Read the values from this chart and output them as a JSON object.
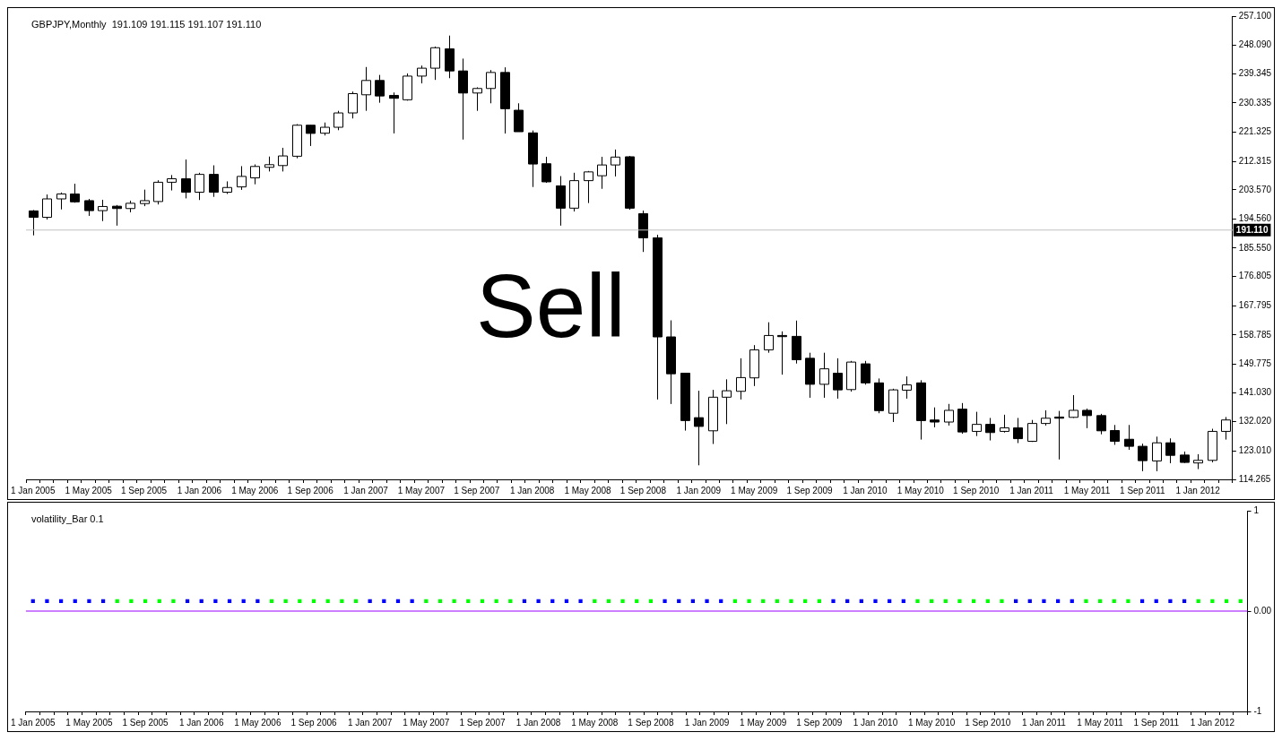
{
  "chart_data": [
    {
      "type": "candlestick",
      "title": "GBPJPY,Monthly  191.109 191.115 191.107 191.110",
      "categories": [
        "1 Jan 2005",
        null,
        null,
        null,
        "1 May 2005",
        null,
        null,
        null,
        "1 Sep 2005",
        null,
        null,
        null,
        "1 Jan 2006",
        null,
        null,
        null,
        "1 May 2006",
        null,
        null,
        null,
        "1 Sep 2006",
        null,
        null,
        null,
        "1 Jan 2007",
        null,
        null,
        null,
        "1 May 2007",
        null,
        null,
        null,
        "1 Sep 2007",
        null,
        null,
        null,
        "1 Jan 2008",
        null,
        null,
        null,
        "1 May 2008",
        null,
        null,
        null,
        "1 Sep 2008",
        null,
        null,
        null,
        "1 Jan 2009",
        null,
        null,
        null,
        "1 May 2009",
        null,
        null,
        null,
        "1 Sep 2009",
        null,
        null,
        null,
        "1 Jan 2010",
        null,
        null,
        null,
        "1 May 2010",
        null,
        null,
        null,
        "1 Sep 2010",
        null,
        null,
        null,
        "1 Jan 2011",
        null,
        null,
        null,
        "1 May 2011",
        null,
        null,
        null,
        "1 Sep 2011",
        null,
        null,
        null,
        "1 Jan 2012",
        null,
        null
      ],
      "ohlc": [
        [
          197.05,
          197.3,
          189.5,
          195.06
        ],
        [
          195.06,
          202.1,
          194.4,
          200.74
        ],
        [
          200.74,
          202.72,
          197.5,
          202.27
        ],
        [
          202.27,
          205.43,
          199.57,
          199.84
        ],
        [
          200.2,
          200.74,
          195.51,
          197.13
        ],
        [
          197.13,
          200.47,
          193.9,
          198.4
        ],
        [
          198.49,
          198.85,
          192.5,
          197.77
        ],
        [
          197.77,
          200.2,
          196.6,
          199.39
        ],
        [
          199.3,
          203.6,
          198.5,
          200.2
        ],
        [
          199.93,
          206.5,
          199.03,
          205.88
        ],
        [
          205.88,
          208.1,
          203.35,
          206.96
        ],
        [
          206.96,
          212.9,
          200.9,
          202.81
        ],
        [
          202.81,
          208.8,
          200.4,
          208.3
        ],
        [
          208.3,
          211.1,
          201.37,
          202.81
        ],
        [
          202.81,
          206.15,
          202.27,
          204.26
        ],
        [
          204.44,
          210.84,
          203.53,
          207.68
        ],
        [
          207.23,
          211.38,
          205.25,
          210.75
        ],
        [
          210.48,
          213.8,
          209.2,
          211.29
        ],
        [
          211.02,
          216.5,
          209.2,
          213.99
        ],
        [
          213.9,
          223.8,
          213.27,
          223.46
        ],
        [
          223.46,
          223.46,
          217.06,
          220.94
        ],
        [
          221.0,
          224.3,
          220.3,
          222.83
        ],
        [
          222.83,
          227.9,
          221.93,
          227.25
        ],
        [
          227.25,
          233.83,
          225.54,
          233.2
        ],
        [
          232.84,
          241.41,
          227.9,
          237.26
        ],
        [
          237.26,
          238.97,
          230.4,
          232.48
        ],
        [
          232.66,
          233.56,
          220.94,
          231.76
        ],
        [
          231.31,
          239.42,
          231.04,
          238.61
        ],
        [
          238.61,
          241.86,
          236.36,
          241.05
        ],
        [
          241.05,
          247.72,
          237.44,
          247.36
        ],
        [
          247.0,
          251.1,
          237.96,
          240.2
        ],
        [
          240.2,
          244.0,
          219.04,
          233.39
        ],
        [
          233.39,
          235.16,
          227.9,
          234.79
        ],
        [
          234.79,
          240.47,
          230.22,
          239.73
        ],
        [
          239.73,
          241.31,
          220.9,
          228.55
        ],
        [
          228.08,
          230.22,
          221.46,
          221.46
        ],
        [
          221.1,
          221.84,
          204.41,
          211.5
        ],
        [
          211.59,
          213.73,
          205.7,
          206.0
        ],
        [
          204.78,
          207.77,
          192.5,
          197.89
        ],
        [
          197.89,
          208.8,
          196.86,
          206.37
        ],
        [
          206.37,
          209.35,
          199.47,
          209.07
        ],
        [
          207.88,
          213.73,
          203.85,
          211.21
        ],
        [
          211.21,
          215.97,
          207.67,
          213.64
        ],
        [
          213.73,
          214.0,
          197.4,
          197.89
        ],
        [
          196.2,
          197.14,
          184.38,
          188.75
        ],
        [
          188.75,
          189.7,
          138.9,
          158.19
        ],
        [
          158.19,
          163.3,
          137.5,
          146.82
        ],
        [
          147.0,
          147.0,
          129.3,
          132.4
        ],
        [
          133.29,
          141.59,
          118.6,
          130.59
        ],
        [
          129.24,
          141.86,
          125.18,
          139.6
        ],
        [
          139.6,
          145.11,
          131.31,
          141.59
        ],
        [
          141.41,
          151.6,
          138.9,
          145.65
        ],
        [
          145.56,
          155.66,
          143.04,
          154.2
        ],
        [
          154.2,
          162.7,
          153.31,
          158.63
        ],
        [
          158.63,
          159.9,
          146.55,
          158.27
        ],
        [
          158.36,
          163.23,
          149.98,
          151.15
        ],
        [
          151.6,
          153.31,
          139.43,
          143.58
        ],
        [
          143.58,
          153.31,
          139.43,
          148.35
        ],
        [
          147.0,
          151.6,
          139.16,
          141.86
        ],
        [
          141.95,
          150.79,
          141.32,
          150.43
        ],
        [
          149.89,
          150.79,
          143.48,
          144.02
        ],
        [
          144.02,
          145.38,
          134.65,
          135.46
        ],
        [
          134.65,
          142.22,
          131.94,
          141.86
        ],
        [
          141.77,
          146.01,
          139.16,
          143.39
        ],
        [
          144.02,
          144.84,
          126.53,
          132.39
        ],
        [
          132.57,
          136.45,
          130.32,
          131.94
        ],
        [
          131.94,
          137.53,
          130.86,
          135.55
        ],
        [
          135.91,
          137.8,
          128.34,
          128.88
        ],
        [
          129.06,
          135.1,
          127.62,
          131.22
        ],
        [
          131.22,
          133.2,
          126.27,
          128.7
        ],
        [
          129.06,
          134.2,
          128.7,
          130.14
        ],
        [
          130.14,
          133.2,
          125.45,
          126.81
        ],
        [
          126.0,
          132.58,
          125.81,
          131.5
        ],
        [
          131.5,
          135.55,
          130.86,
          133.12
        ],
        [
          133.48,
          135.37,
          120.4,
          133.12
        ],
        [
          133.39,
          140.24,
          133.21,
          135.55
        ],
        [
          135.55,
          136.09,
          130.05,
          133.93
        ],
        [
          133.93,
          134.47,
          128.16,
          129.24
        ],
        [
          129.33,
          131.04,
          124.91,
          126.0
        ],
        [
          126.63,
          131.04,
          123.38,
          124.46
        ],
        [
          124.46,
          125.27,
          116.79,
          120.04
        ],
        [
          119.95,
          127.44,
          116.79,
          125.54
        ],
        [
          125.54,
          126.9,
          119.23,
          121.67
        ],
        [
          121.76,
          122.84,
          119.32,
          119.5
        ],
        [
          119.32,
          122.03,
          117.43,
          120.13
        ],
        [
          120.13,
          129.87,
          119.5,
          129.06
        ],
        [
          129.06,
          133.48,
          126.53,
          132.58
        ]
      ],
      "ylim": [
        114.265,
        257.1
      ],
      "yticks": [
        {
          "value": 257.1,
          "label": "257.100"
        },
        {
          "value": 248.09,
          "label": "248.090"
        },
        {
          "value": 239.345,
          "label": "239.345"
        },
        {
          "value": 230.335,
          "label": "230.335"
        },
        {
          "value": 221.325,
          "label": "221.325"
        },
        {
          "value": 212.315,
          "label": "212.315"
        },
        {
          "value": 203.57,
          "label": "203.570"
        },
        {
          "value": 194.56,
          "label": "194.560"
        },
        {
          "value": 185.55,
          "label": "185.550"
        },
        {
          "value": 176.805,
          "label": "176.805"
        },
        {
          "value": 167.795,
          "label": "167.795"
        },
        {
          "value": 158.785,
          "label": "158.785"
        },
        {
          "value": 149.775,
          "label": "149.775"
        },
        {
          "value": 141.03,
          "label": "141.030"
        },
        {
          "value": 132.02,
          "label": "132.020"
        },
        {
          "value": 123.01,
          "label": "123.010"
        },
        {
          "value": 114.265,
          "label": "114.265"
        }
      ],
      "ref_lines": [
        {
          "axis": "y",
          "value": 191.11,
          "label": "191.110",
          "color": "#c0c0c0"
        }
      ],
      "annotations": [
        "Sell"
      ]
    },
    {
      "type": "scatter",
      "title": "volatility_Bar 0.1",
      "marker": "square",
      "categories": [
        "1 Jan 2005",
        null,
        null,
        null,
        "1 May 2005",
        null,
        null,
        null,
        "1 Sep 2005",
        null,
        null,
        null,
        "1 Jan 2006",
        null,
        null,
        null,
        "1 May 2006",
        null,
        null,
        null,
        "1 Sep 2006",
        null,
        null,
        null,
        "1 Jan 2007",
        null,
        null,
        null,
        "1 May 2007",
        null,
        null,
        null,
        "1 Sep 2007",
        null,
        null,
        null,
        "1 Jan 2008",
        null,
        null,
        null,
        "1 May 2008",
        null,
        null,
        null,
        "1 Sep 2008",
        null,
        null,
        null,
        "1 Jan 2009",
        null,
        null,
        null,
        "1 May 2009",
        null,
        null,
        null,
        "1 Sep 2009",
        null,
        null,
        null,
        "1 Jan 2010",
        null,
        null,
        null,
        "1 May 2010",
        null,
        null,
        null,
        "1 Sep 2010",
        null,
        null,
        null,
        "1 Jan 2011",
        null,
        null,
        null,
        "1 May 2011",
        null,
        null,
        null,
        "1 Sep 2011",
        null,
        null,
        null,
        "1 Jan 2012",
        null,
        null
      ],
      "values": [
        0.1,
        0.1,
        0.1,
        0.1,
        0.1,
        0.1,
        0.1,
        0.1,
        0.1,
        0.1,
        0.1,
        0.1,
        0.1,
        0.1,
        0.1,
        0.1,
        0.1,
        0.1,
        0.1,
        0.1,
        0.1,
        0.1,
        0.1,
        0.1,
        0.1,
        0.1,
        0.1,
        0.1,
        0.1,
        0.1,
        0.1,
        0.1,
        0.1,
        0.1,
        0.1,
        0.1,
        0.1,
        0.1,
        0.1,
        0.1,
        0.1,
        0.1,
        0.1,
        0.1,
        0.1,
        0.1,
        0.1,
        0.1,
        0.1,
        0.1,
        0.1,
        0.1,
        0.1,
        0.1,
        0.1,
        0.1,
        0.1,
        0.1,
        0.1,
        0.1,
        0.1,
        0.1,
        0.1,
        0.1,
        0.1,
        0.1,
        0.1,
        0.1,
        0.1,
        0.1,
        0.1,
        0.1,
        0.1,
        0.1,
        0.1,
        0.1,
        0.1,
        0.1,
        0.1,
        0.1,
        0.1,
        0.1,
        0.1,
        0.1,
        0.1,
        0.1,
        0.1
      ],
      "colors": [
        "#0000ff",
        "#0000ff",
        "#0000ff",
        "#0000ff",
        "#0000ff",
        "#0000ff",
        "#00ff00",
        "#00ff00",
        "#00ff00",
        "#00ff00",
        "#00ff00",
        "#0000ff",
        "#0000ff",
        "#0000ff",
        "#0000ff",
        "#0000ff",
        "#0000ff",
        "#00ff00",
        "#00ff00",
        "#00ff00",
        "#00ff00",
        "#00ff00",
        "#00ff00",
        "#00ff00",
        "#0000ff",
        "#0000ff",
        "#0000ff",
        "#0000ff",
        "#00ff00",
        "#00ff00",
        "#00ff00",
        "#00ff00",
        "#00ff00",
        "#00ff00",
        "#00ff00",
        "#0000ff",
        "#0000ff",
        "#0000ff",
        "#0000ff",
        "#0000ff",
        "#00ff00",
        "#00ff00",
        "#00ff00",
        "#00ff00",
        "#00ff00",
        "#0000ff",
        "#0000ff",
        "#0000ff",
        "#0000ff",
        "#0000ff",
        "#00ff00",
        "#00ff00",
        "#00ff00",
        "#00ff00",
        "#00ff00",
        "#00ff00",
        "#00ff00",
        "#0000ff",
        "#0000ff",
        "#0000ff",
        "#0000ff",
        "#0000ff",
        "#0000ff",
        "#00ff00",
        "#00ff00",
        "#00ff00",
        "#00ff00",
        "#00ff00",
        "#00ff00",
        "#00ff00",
        "#0000ff",
        "#0000ff",
        "#0000ff",
        "#0000ff",
        "#0000ff",
        "#00ff00",
        "#00ff00",
        "#00ff00",
        "#00ff00",
        "#0000ff",
        "#0000ff",
        "#0000ff",
        "#0000ff",
        "#00ff00",
        "#00ff00",
        "#00ff00",
        "#00ff00"
      ],
      "ylim": [
        -1,
        1
      ],
      "yticks": [
        1,
        {
          "value": 0,
          "label": "0.00"
        },
        -1
      ],
      "ref_lines": [
        {
          "axis": "y",
          "value": 0,
          "color": "#9900ff"
        }
      ]
    }
  ]
}
